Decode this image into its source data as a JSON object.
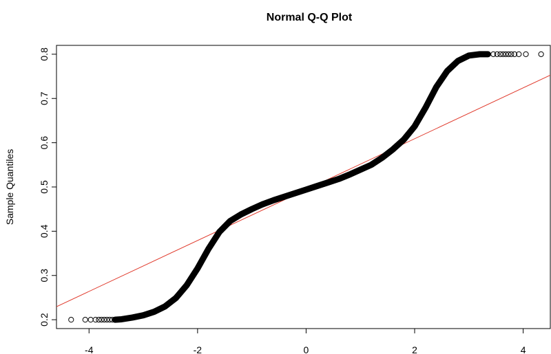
{
  "chart_data": {
    "type": "scatter",
    "title": "Normal Q-Q Plot",
    "xlabel": "",
    "ylabel": "Sample Quantiles",
    "xlim": [
      -4.6,
      4.5
    ],
    "ylim": [
      0.18,
      0.82
    ],
    "x_ticks": [
      -4,
      -2,
      0,
      2,
      4
    ],
    "y_ticks": [
      0.2,
      0.3,
      0.4,
      0.5,
      0.6,
      0.7,
      0.8
    ],
    "x_tick_labels": [
      "-4",
      "-2",
      "0",
      "2",
      "4"
    ],
    "y_tick_labels": [
      "0.2",
      "0.3",
      "0.4",
      "0.5",
      "0.6",
      "0.7",
      "0.8"
    ],
    "grid": false,
    "reference_line": {
      "intercept": 0.494,
      "slope": 0.0575,
      "color": "#e0392b"
    },
    "points_x": [
      -4.33,
      -4.07,
      -3.97,
      -3.88,
      -3.82,
      -3.77,
      -3.72,
      -3.67,
      -3.62,
      -3.57,
      -3.52,
      -3.4,
      -3.2,
      -3.0,
      -2.8,
      -2.6,
      -2.4,
      -2.2,
      -2.0,
      -1.8,
      -1.6,
      -1.4,
      -1.2,
      -1.0,
      -0.8,
      -0.6,
      -0.4,
      -0.2,
      0.0,
      0.2,
      0.4,
      0.6,
      0.8,
      1.0,
      1.2,
      1.4,
      1.6,
      1.8,
      2.0,
      2.2,
      2.4,
      2.6,
      2.8,
      3.0,
      3.2,
      3.35,
      3.45,
      3.52,
      3.58,
      3.63,
      3.68,
      3.73,
      3.78,
      3.84,
      3.92,
      4.05,
      4.33
    ],
    "points_y": [
      0.2,
      0.2,
      0.2,
      0.2,
      0.2,
      0.2,
      0.2,
      0.2,
      0.2,
      0.2,
      0.2,
      0.201,
      0.205,
      0.21,
      0.218,
      0.23,
      0.249,
      0.278,
      0.316,
      0.36,
      0.398,
      0.423,
      0.438,
      0.45,
      0.461,
      0.47,
      0.478,
      0.486,
      0.494,
      0.502,
      0.51,
      0.518,
      0.528,
      0.539,
      0.55,
      0.566,
      0.585,
      0.607,
      0.637,
      0.679,
      0.726,
      0.762,
      0.785,
      0.797,
      0.8,
      0.8,
      0.8,
      0.8,
      0.8,
      0.8,
      0.8,
      0.8,
      0.8,
      0.8,
      0.8,
      0.8,
      0.8
    ]
  }
}
